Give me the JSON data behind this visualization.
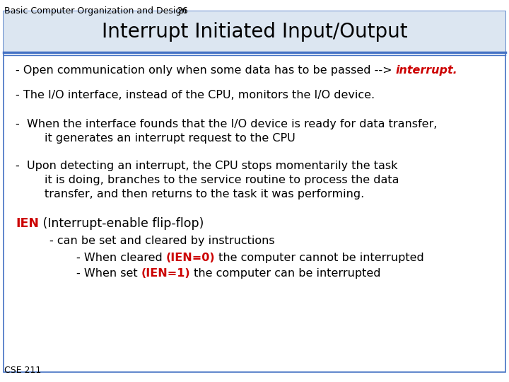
{
  "header_text": "Basic Computer Organization and Design",
  "slide_number": "26",
  "title": "Interrupt Initiated Input/Output",
  "bg_color": "#ffffff",
  "border_color": "#4472c4",
  "title_color": "#000000",
  "header_color": "#000000",
  "body_color": "#000000",
  "red_color": "#cc0000",
  "footer_text": "CSE 211",
  "title_bg": "#dce6f1",
  "line1_normal": "- Open communication only when some data has to be passed --> ",
  "line1_red": "interrupt.",
  "line2": "- The I/O interface, instead of the CPU, monitors the I/O device.",
  "line3a": "-  When the interface founds that the I/O device is ready for data transfer,",
  "line3b": "        it generates an interrupt request to the CPU",
  "line4a": "-  Upon detecting an interrupt, the CPU stops momentarily the task",
  "line4b": "        it is doing, branches to the service routine to process the data",
  "line4c": "        transfer, and then returns to the task it was performing.",
  "ien_label": "IEN",
  "ien_rest": " (Interrupt-enable flip-flop)",
  "sub1": "- can be set and cleared by instructions",
  "sub2a_pre": "- When cleared ",
  "sub2a_red": "(IEN=0)",
  "sub2a_post": " the computer cannot be interrupted",
  "sub2b_pre": "- When set ",
  "sub2b_red": "(IEN=1)",
  "sub2b_post": " the computer can be interrupted"
}
